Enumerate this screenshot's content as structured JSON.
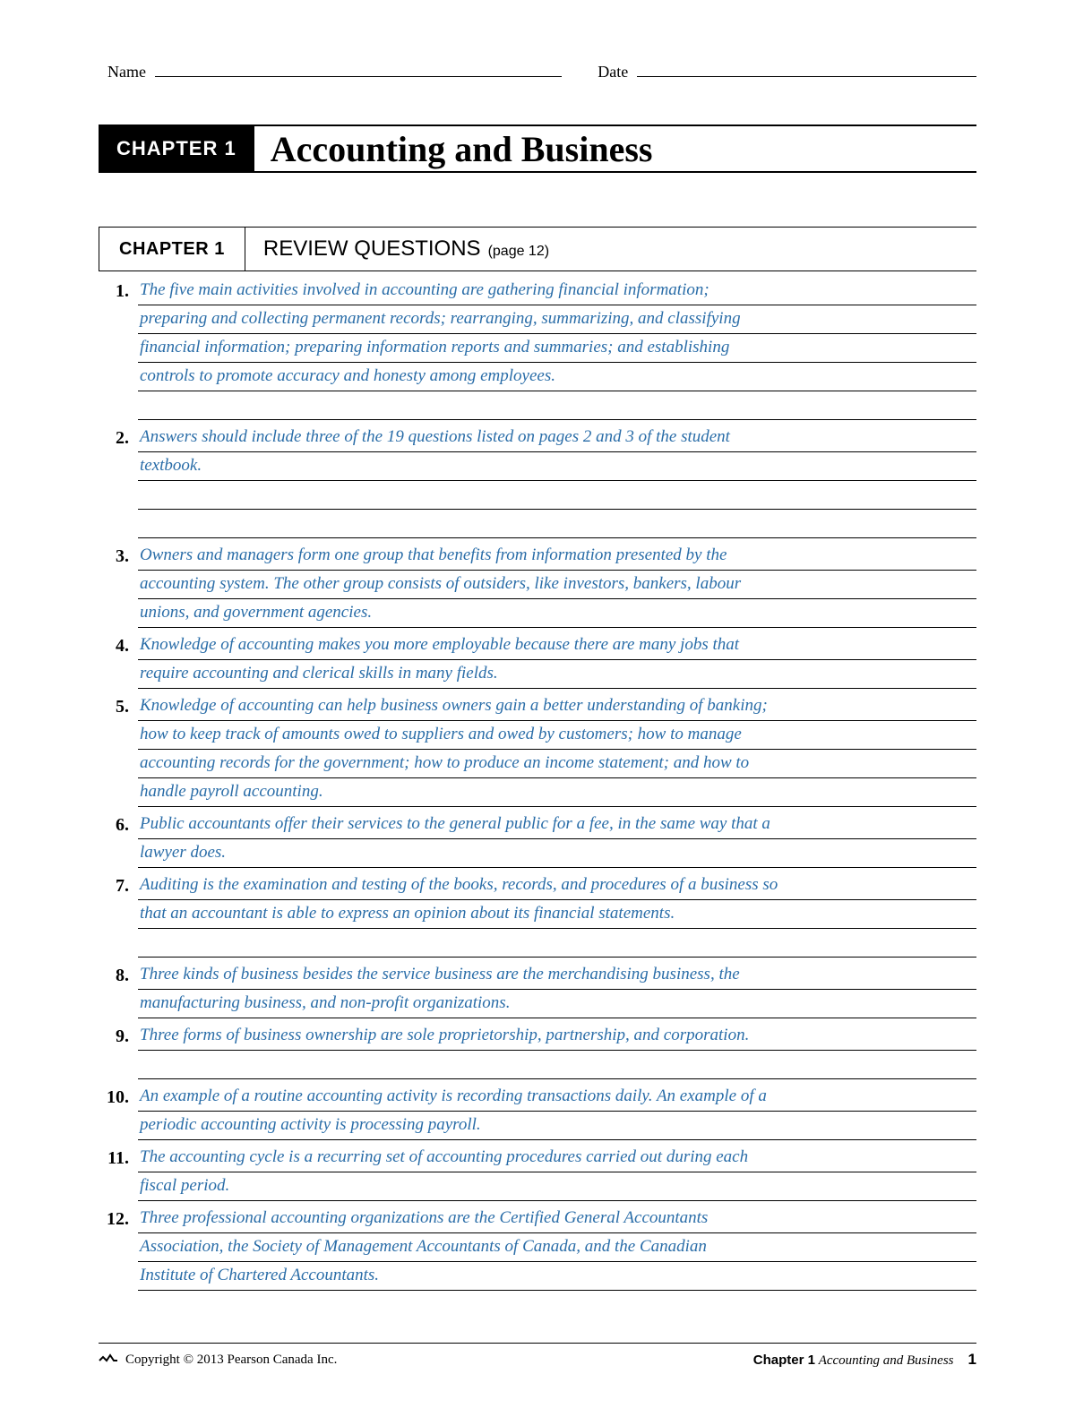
{
  "header": {
    "name_label": "Name",
    "date_label": "Date"
  },
  "title": {
    "chapter_tag": "CHAPTER 1",
    "text": "Accounting and Business"
  },
  "section": {
    "chapter_tag": "CHAPTER 1",
    "title": "REVIEW QUESTIONS",
    "page_ref": "(page 12)"
  },
  "answer_color": "#2a6da8",
  "questions": [
    {
      "num": "1.",
      "lines": [
        "The five main activities involved in accounting are gathering financial information;",
        "preparing and collecting permanent records; rearranging, summarizing, and classifying",
        "financial information; preparing information reports and summaries; and establishing",
        "controls to promote accuracy and honesty among employees.",
        ""
      ]
    },
    {
      "num": "2.",
      "lines": [
        "Answers should include three of the 19 questions listed on pages 2 and 3 of the student",
        "textbook.",
        "",
        ""
      ]
    },
    {
      "num": "3.",
      "lines": [
        "Owners and managers form one group that benefits from information presented by the",
        "accounting system. The other group consists of outsiders, like investors, bankers, labour",
        "unions, and government agencies."
      ]
    },
    {
      "num": "4.",
      "lines": [
        "Knowledge of accounting makes you more employable because there are many jobs that",
        "require accounting and clerical skills in many fields."
      ]
    },
    {
      "num": "5.",
      "lines": [
        "Knowledge of accounting can help business owners gain a better understanding of banking;",
        "how to keep track of amounts owed to suppliers and owed by customers; how to manage",
        "accounting records for the government; how to produce an income statement; and how to",
        "handle payroll accounting."
      ]
    },
    {
      "num": "6.",
      "lines": [
        "Public accountants offer their services to the general public for a fee, in the same way that a",
        "lawyer does."
      ]
    },
    {
      "num": "7.",
      "lines": [
        "Auditing is the examination and testing of the books, records, and procedures of a business so",
        "that an accountant is able to express an opinion about its financial statements.",
        ""
      ]
    },
    {
      "num": "8.",
      "lines": [
        "Three kinds of business besides the service business are the merchandising business, the",
        "manufacturing business, and non-profit organizations."
      ]
    },
    {
      "num": "9.",
      "lines": [
        "Three forms of business ownership are sole proprietorship, partnership, and corporation.",
        ""
      ]
    },
    {
      "num": "10.",
      "lines": [
        "An example of a routine accounting activity is recording transactions daily. An example of a",
        "periodic accounting activity is processing payroll."
      ]
    },
    {
      "num": "11.",
      "lines": [
        "The accounting cycle is a recurring set of accounting procedures carried out during each",
        "fiscal period."
      ]
    },
    {
      "num": "12.",
      "lines": [
        "Three professional accounting organizations are the Certified General Accountants",
        "Association, the Society of Management Accountants of Canada, and the Canadian",
        "Institute of Chartered Accountants."
      ]
    }
  ],
  "footer": {
    "copyright": "Copyright © 2013 Pearson Canada Inc.",
    "chapter_label": "Chapter 1",
    "chapter_title": "Accounting and Business",
    "page_num": "1"
  }
}
